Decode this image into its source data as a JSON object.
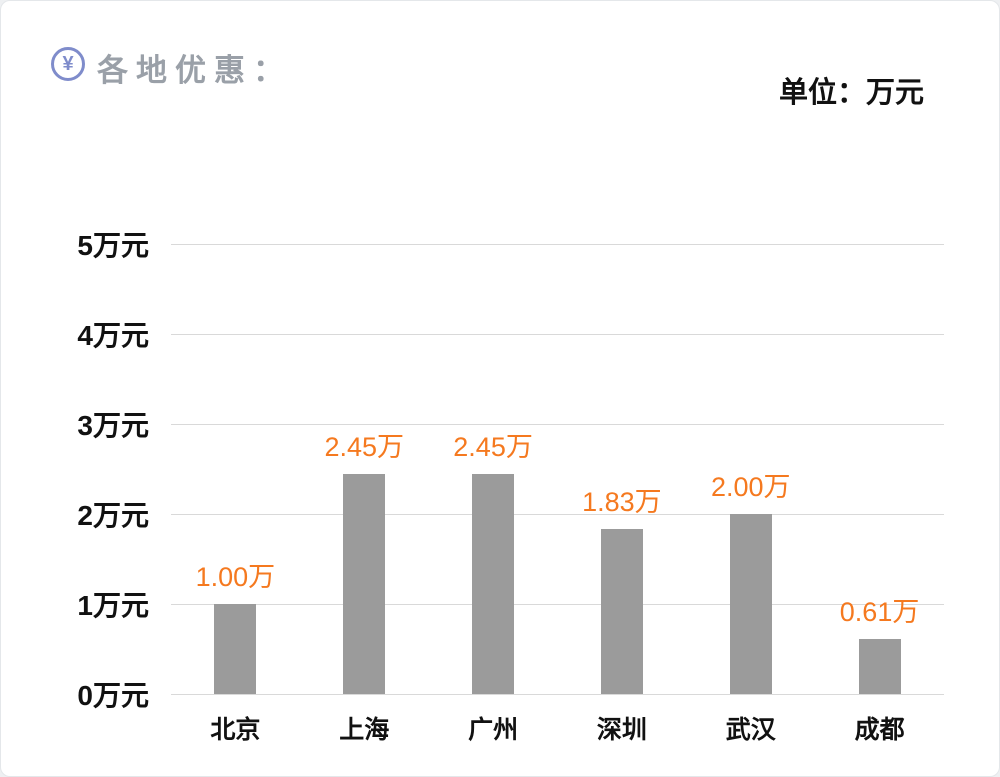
{
  "header": {
    "icon": "yen-icon",
    "icon_glyph": "¥",
    "title": "各地优惠：",
    "unit_label": "单位：万元"
  },
  "chart_data": {
    "type": "bar",
    "title": "各地优惠",
    "unit": "万元",
    "categories": [
      "北京",
      "上海",
      "广州",
      "深圳",
      "武汉",
      "成都"
    ],
    "values": [
      1.0,
      2.45,
      2.45,
      1.83,
      2.0,
      0.61
    ],
    "value_labels": [
      "1.00万",
      "2.45万",
      "2.45万",
      "1.83万",
      "2.00万",
      "0.61万"
    ],
    "y_ticks": [
      0,
      1,
      2,
      3,
      4,
      5
    ],
    "y_tick_labels": [
      "0万元",
      "1万元",
      "2万元",
      "3万元",
      "4万元",
      "5万元"
    ],
    "ylim": [
      0,
      5
    ],
    "grid": true,
    "legend": false,
    "bar_color": "#9b9b9b",
    "label_color": "#f5791f",
    "gridline_color": "#d9d9d9",
    "icon_color": "#7f8ccb",
    "title_color": "#9aa0a8"
  }
}
